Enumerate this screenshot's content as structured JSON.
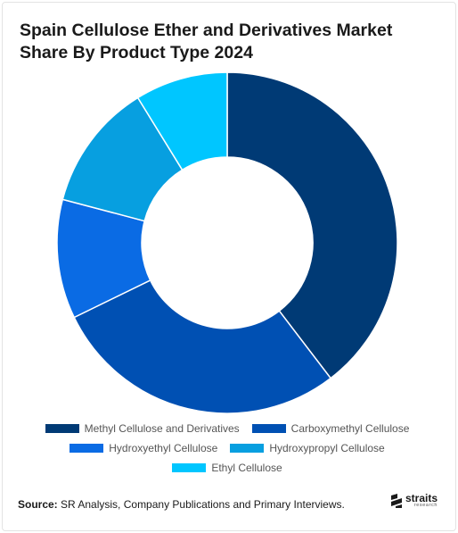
{
  "chart_data": {
    "type": "pie",
    "title": "Spain Cellulose Ether and Derivatives Market Share By Product Type 2024",
    "categories": [
      "Methyl Cellulose and Derivatives",
      "Carboxymethyl Cellulose",
      "Hydroxyethyl Cellulose",
      "Hydroxypropyl Cellulose",
      "Ethyl Cellulose"
    ],
    "values": [
      39.6,
      28.2,
      11.3,
      12.1,
      8.8
    ],
    "colors": [
      "#003a75",
      "#0050b3",
      "#0a6be4",
      "#079fe0",
      "#00c6ff"
    ],
    "donut": true,
    "legend_position": "bottom"
  },
  "source": {
    "label": "Source:",
    "text": "SR Analysis, Company Publications and Primary Interviews."
  },
  "logo": {
    "name": "straits",
    "tagline": "research"
  }
}
